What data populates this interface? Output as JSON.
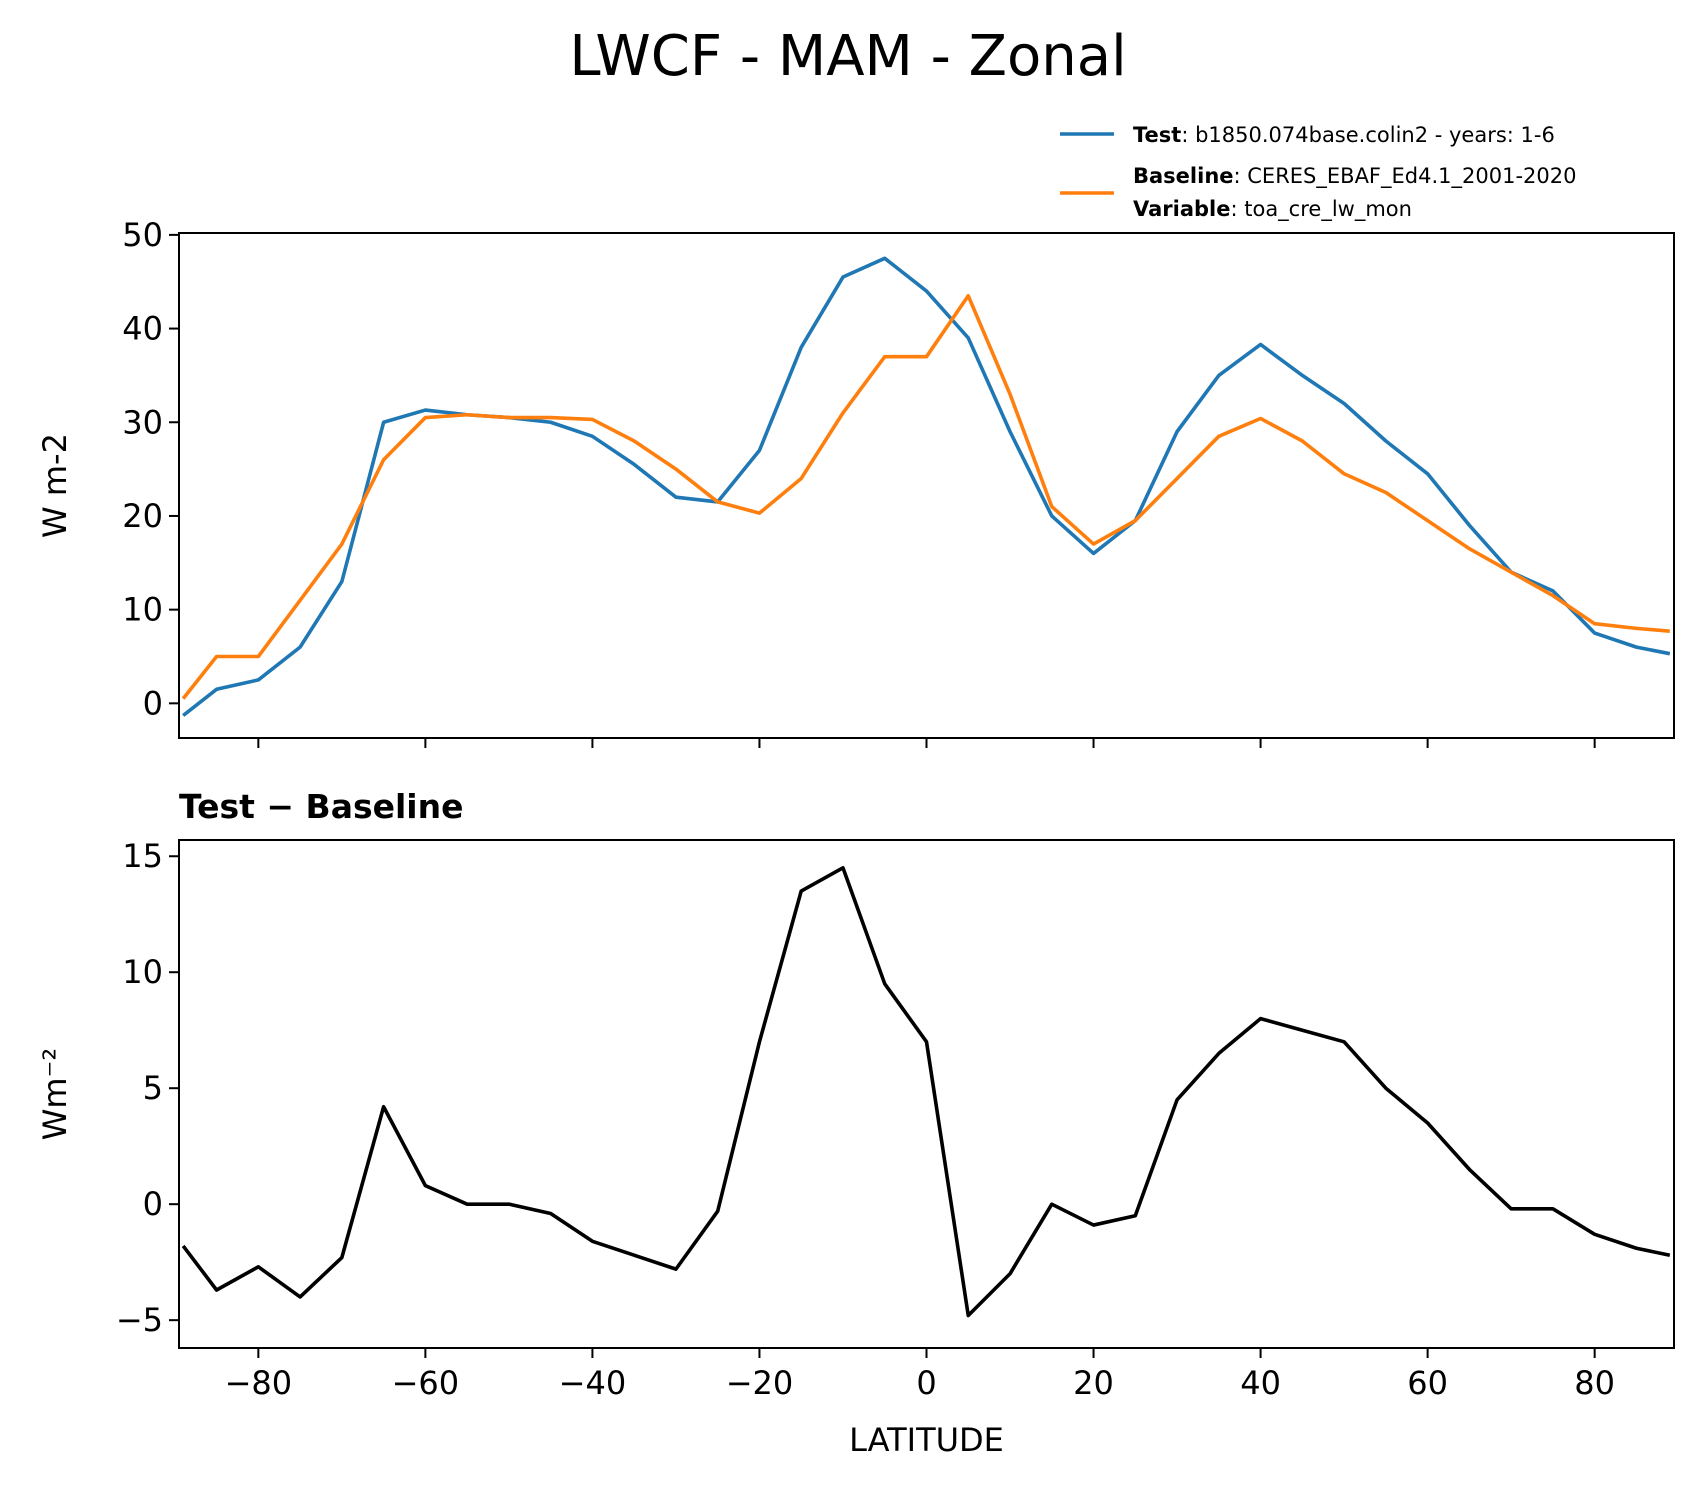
{
  "title": "LWCF - MAM - Zonal",
  "chart_data": [
    {
      "type": "line",
      "ylabel": "W m-2",
      "x": [
        -89,
        -85,
        -80,
        -75,
        -70,
        -65,
        -60,
        -55,
        -50,
        -45,
        -40,
        -35,
        -30,
        -25,
        -20,
        -15,
        -10,
        -5,
        0,
        5,
        10,
        15,
        20,
        25,
        30,
        35,
        40,
        45,
        50,
        55,
        60,
        65,
        70,
        75,
        80,
        85,
        89
      ],
      "series": [
        {
          "name": "Test",
          "description": ": b1850.074base.colin2 - years: 1-6",
          "color": "#1f77b4",
          "values": [
            -1.3,
            1.5,
            2.5,
            6,
            13,
            30,
            31.3,
            30.8,
            30.5,
            30,
            28.5,
            25.5,
            22,
            21.5,
            27,
            38,
            45.5,
            47.5,
            44,
            39,
            29,
            20,
            16,
            19.5,
            29,
            35,
            38.3,
            35,
            32,
            28,
            24.5,
            19,
            14,
            12,
            7.5,
            6,
            5.3
          ]
        },
        {
          "name": "Baseline",
          "description": ": CERES_EBAF_Ed4.1_2001-2020",
          "color": "#ff7f0e",
          "values": [
            0.5,
            5,
            5,
            11,
            17,
            26,
            30.5,
            30.8,
            30.5,
            30.5,
            30.3,
            28,
            25,
            21.5,
            20.3,
            24,
            31,
            37,
            37,
            43.5,
            33,
            21,
            17,
            19.5,
            24,
            28.5,
            30.4,
            28,
            24.5,
            22.5,
            19.5,
            16.5,
            14,
            11.5,
            8.5,
            8,
            7.7
          ]
        }
      ],
      "legend_extra": {
        "name": "Variable",
        "description": ": toa_cre_lw_mon"
      },
      "xlim": [
        -89.5,
        89.5
      ],
      "xticks": [
        -80,
        -60,
        -40,
        -20,
        0,
        20,
        40,
        60,
        80
      ],
      "ylim": [
        -3.7,
        50.2
      ],
      "yticks": [
        0,
        10,
        20,
        30,
        40,
        50
      ]
    },
    {
      "type": "line",
      "title": "Test − Baseline",
      "xlabel": "LATITUDE",
      "ylabel": "Wm⁻²",
      "x": [
        -89,
        -85,
        -80,
        -75,
        -70,
        -65,
        -60,
        -55,
        -50,
        -45,
        -40,
        -35,
        -30,
        -25,
        -20,
        -15,
        -10,
        -5,
        0,
        5,
        10,
        15,
        20,
        25,
        30,
        35,
        40,
        45,
        50,
        55,
        60,
        65,
        70,
        75,
        80,
        85,
        89
      ],
      "series": [
        {
          "color": "#000000",
          "values": [
            -1.8,
            -3.7,
            -2.7,
            -4,
            -2.3,
            4.2,
            0.8,
            0,
            0,
            -0.4,
            -1.6,
            -2.2,
            -2.8,
            -0.3,
            7,
            13.5,
            14.5,
            9.5,
            7,
            -4.8,
            -3,
            0,
            -0.9,
            -0.5,
            4.5,
            6.5,
            8,
            7.5,
            7,
            5,
            3.5,
            1.5,
            -0.2,
            -0.2,
            -1.3,
            -1.9,
            -2.2
          ]
        }
      ],
      "xlim": [
        -89.5,
        89.5
      ],
      "xticks": [
        {
          "value": -80,
          "label": "−80"
        },
        {
          "value": -60,
          "label": "−60"
        },
        {
          "value": -40,
          "label": "−40"
        },
        {
          "value": -20,
          "label": "−20"
        },
        0,
        20,
        40,
        60,
        80
      ],
      "ylim": [
        -6.2,
        15.7
      ],
      "yticks": [
        {
          "value": -5,
          "label": "−5"
        },
        0,
        5,
        10,
        15
      ]
    }
  ]
}
